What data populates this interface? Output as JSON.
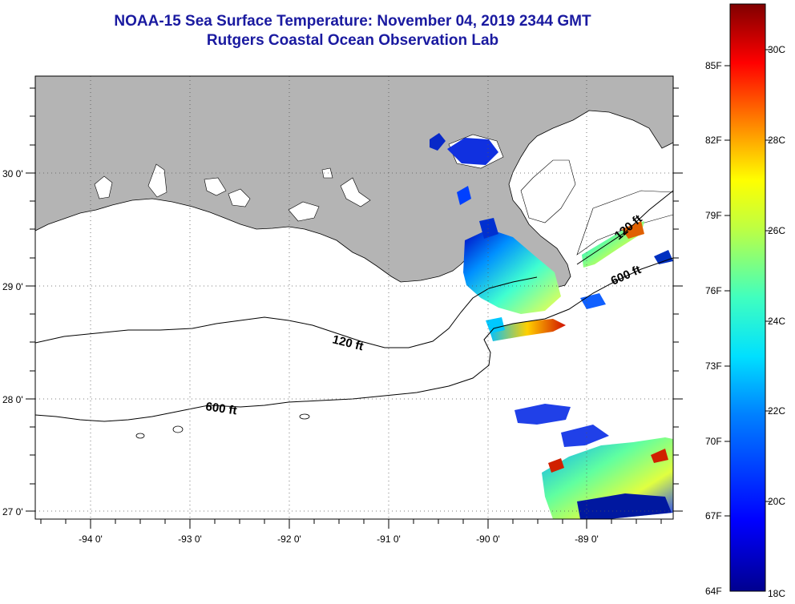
{
  "title": {
    "line1": "NOAA-15 Sea Surface Temperature:  November 04, 2019 2344 GMT",
    "line2": "Rutgers Coastal Ocean Observation Lab"
  },
  "map": {
    "lat_labels": [
      "30 0'",
      "29 0'",
      "28 0'",
      "27 0'"
    ],
    "lon_labels": [
      "-94 0'",
      "-93 0'",
      "-92 0'",
      "-91 0'",
      "-90 0'",
      "-89 0'"
    ],
    "contours": [
      {
        "label": "120 ft"
      },
      {
        "label": "600 ft"
      },
      {
        "label": "120 ft"
      },
      {
        "label": "600 ft"
      }
    ]
  },
  "colorbar": {
    "fahrenheit": [
      "85F",
      "82F",
      "79F",
      "76F",
      "73F",
      "70F",
      "67F",
      "64F"
    ],
    "celsius": [
      "30C",
      "28C",
      "26C",
      "24C",
      "22C",
      "20C",
      "18C"
    ]
  },
  "colors": {
    "land": "#b4b4b4",
    "title": "#1a1aa0",
    "water": "#ffffff"
  }
}
